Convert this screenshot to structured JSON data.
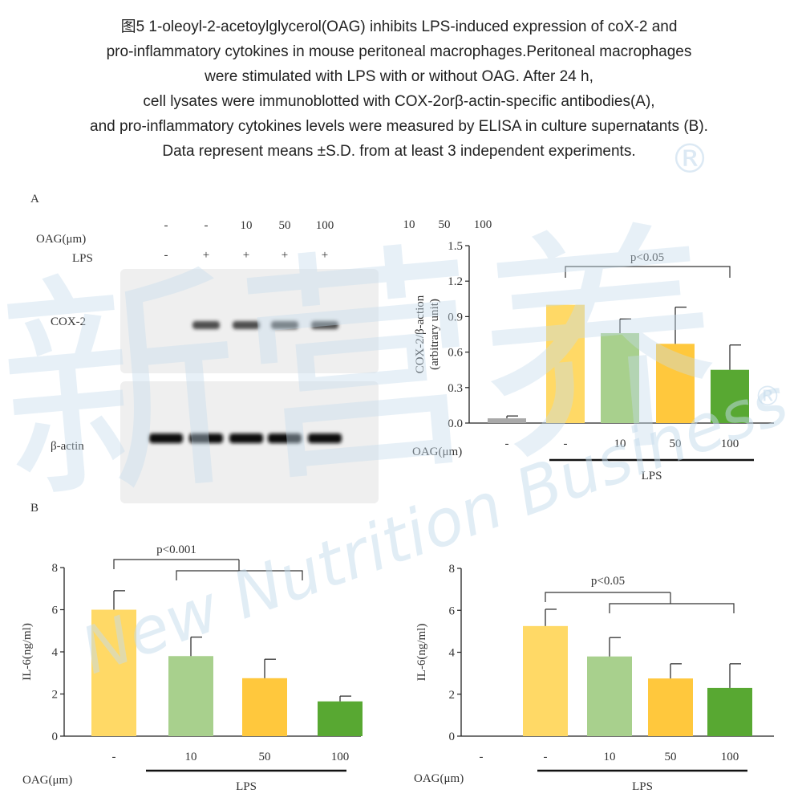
{
  "caption": [
    "图5 1-oleoyl-2-acetoylglycerol(OAG) inhibits LPS-induced expression of coX-2 and",
    "pro-inflammatory cytokines in mouse peritoneal macrophages.Peritoneal macrophages",
    "were stimulated with LPS with or without OAG. After 24 h,",
    "cell lysates were immunoblotted with COX-2orβ-actin-specific antibodies(A),",
    "and pro-inflammatory cytokines levels were measured by ELISA in culture supernatants (B).",
    "Data represent means ±S.D. from at least 3 independent experiments."
  ],
  "panel_a_label": "A",
  "panel_b_label": "B",
  "blot": {
    "oag_label": "OAG(μm)",
    "lps_label": "LPS",
    "oag_values": [
      "-",
      "-",
      "10",
      "50",
      "100"
    ],
    "lps_values": [
      "-",
      "+",
      "+",
      "+",
      "+"
    ],
    "cox2_label": "COX-2",
    "actin_label": "β-actin",
    "cox2_bands": [
      0,
      1,
      1,
      1,
      1
    ],
    "actin_bands": [
      1,
      1,
      1,
      1,
      1
    ]
  },
  "stray_text": [
    "10",
    "50",
    "100"
  ],
  "colors": {
    "gray": "#a9a9a9",
    "yellow": "#ffd966",
    "light_green": "#a8d08d",
    "orange_yellow": "#ffc83d",
    "green": "#58a832",
    "watermark": "#c5dced"
  },
  "watermark": {
    "cn": "新营养",
    "en": "New Nutrition Business",
    "mark": "®"
  },
  "chart_data": [
    {
      "type": "bar",
      "ylabel": "COX-2/β-action",
      "ylabel2": "(arbitrary unit)",
      "xlabel": "OAG(μm)",
      "group_label": "LPS",
      "categories": [
        "-",
        "-",
        "10",
        "50",
        "100"
      ],
      "values": [
        0.04,
        1.0,
        0.76,
        0.67,
        0.45
      ],
      "errors": [
        0.02,
        0.0,
        0.12,
        0.31,
        0.21
      ],
      "colors": [
        "#a9a9a9",
        "#ffd966",
        "#a8d08d",
        "#ffc83d",
        "#58a832"
      ],
      "ylim": [
        0,
        1.5
      ],
      "yticks": [
        "0.0",
        "0.3",
        "0.6",
        "0.9",
        "1.2",
        "1.5"
      ],
      "annotation": "p<0.05"
    },
    {
      "type": "bar",
      "ylabel": "IL-6(ng/ml)",
      "xlabel": "OAG(μm)",
      "group_label": "LPS",
      "categories": [
        "-",
        "10",
        "50",
        "100"
      ],
      "values": [
        6.0,
        3.8,
        2.75,
        1.65
      ],
      "errors": [
        0.9,
        0.9,
        0.9,
        0.25
      ],
      "colors": [
        "#ffd966",
        "#a8d08d",
        "#ffc83d",
        "#58a832"
      ],
      "ylim": [
        0,
        8
      ],
      "yticks": [
        "0",
        "2",
        "4",
        "6",
        "8"
      ],
      "annotation": "p<0.001"
    },
    {
      "type": "bar",
      "ylabel": "IL-6(ng/ml)",
      "xlabel": "OAG(μm)",
      "group_label": "LPS",
      "categories": [
        "-",
        "-",
        "10",
        "50",
        "100"
      ],
      "values": [
        0,
        5.25,
        3.8,
        2.75,
        2.3
      ],
      "errors": [
        0,
        0.8,
        0.9,
        0.7,
        1.15
      ],
      "colors": [
        "#a9a9a9",
        "#ffd966",
        "#a8d08d",
        "#ffc83d",
        "#58a832"
      ],
      "ylim": [
        0,
        8
      ],
      "yticks": [
        "0",
        "2",
        "4",
        "6",
        "8"
      ],
      "annotation": "p<0.05"
    }
  ]
}
